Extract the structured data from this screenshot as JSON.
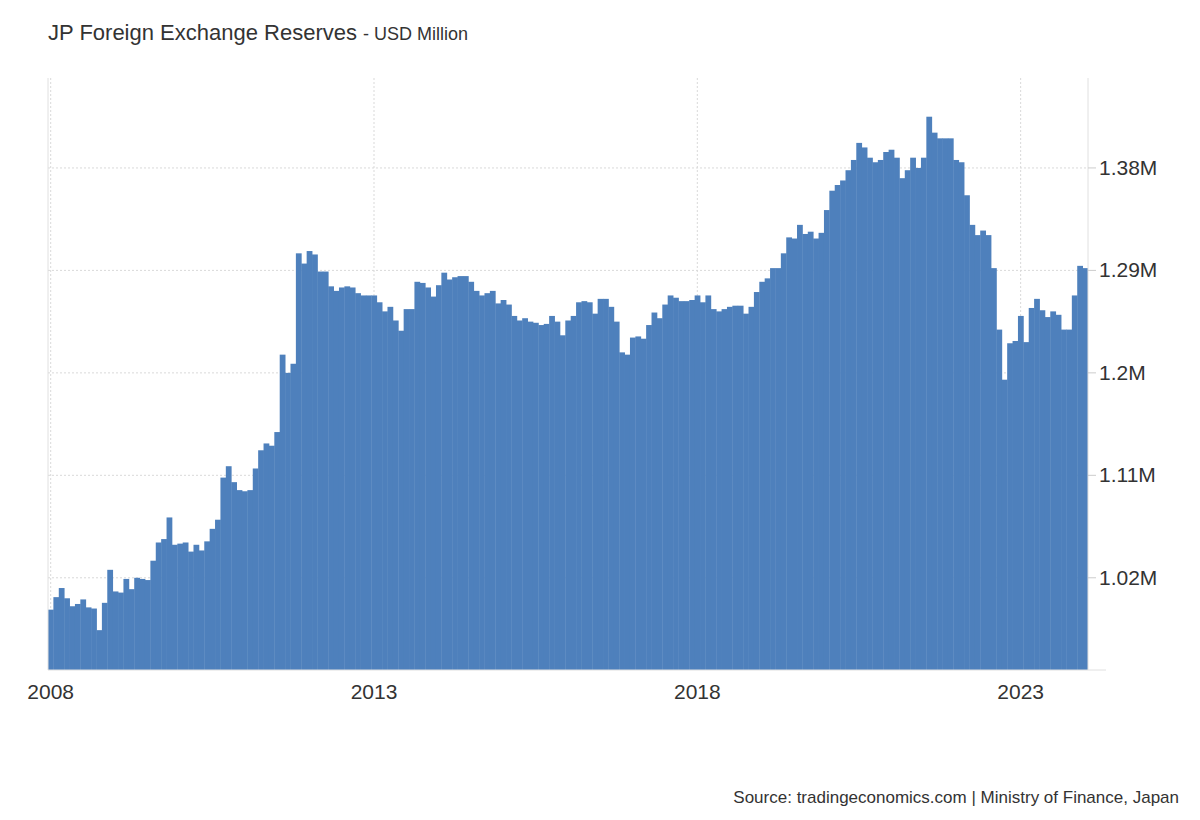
{
  "chart_data": {
    "type": "bar",
    "title": "JP Foreign Exchange Reserves",
    "subtitle": "- USD Million",
    "source": "Source: tradingeconomics.com | Ministry of Finance, Japan",
    "color": "#4e80bc",
    "grid": true,
    "ylim": [
      939000,
      1459000
    ],
    "yticks": [
      {
        "value": 1020000,
        "label": "1.02M"
      },
      {
        "value": 1110000,
        "label": "1.11M"
      },
      {
        "value": 1200000,
        "label": "1.2M"
      },
      {
        "value": 1290000,
        "label": "1.29M"
      },
      {
        "value": 1380000,
        "label": "1.38M"
      }
    ],
    "categories": [
      "2008",
      null,
      null,
      null,
      null,
      null,
      null,
      null,
      null,
      null,
      null,
      null,
      null,
      null,
      null,
      null,
      null,
      null,
      null,
      null,
      null,
      null,
      null,
      null,
      null,
      null,
      null,
      null,
      null,
      null,
      null,
      null,
      null,
      null,
      null,
      null,
      null,
      null,
      null,
      null,
      null,
      null,
      null,
      null,
      null,
      null,
      null,
      null,
      null,
      null,
      null,
      null,
      null,
      null,
      null,
      null,
      null,
      null,
      null,
      null,
      "2013",
      null,
      null,
      null,
      null,
      null,
      null,
      null,
      null,
      null,
      null,
      null,
      null,
      null,
      null,
      null,
      null,
      null,
      null,
      null,
      null,
      null,
      null,
      null,
      null,
      null,
      null,
      null,
      null,
      null,
      null,
      null,
      null,
      null,
      null,
      null,
      null,
      null,
      null,
      null,
      null,
      null,
      null,
      null,
      null,
      null,
      null,
      null,
      null,
      null,
      null,
      null,
      null,
      null,
      null,
      null,
      null,
      null,
      null,
      null,
      "2018",
      null,
      null,
      null,
      null,
      null,
      null,
      null,
      null,
      null,
      null,
      null,
      null,
      null,
      null,
      null,
      null,
      null,
      null,
      null,
      null,
      null,
      null,
      null,
      null,
      null,
      null,
      null,
      null,
      null,
      null,
      null,
      null,
      null,
      null,
      null,
      null,
      null,
      null,
      null,
      null,
      null,
      null,
      null,
      null,
      null,
      null,
      null,
      null,
      null,
      null,
      null,
      null,
      null,
      null,
      null,
      null,
      null,
      null,
      null,
      "2023",
      null,
      null,
      null,
      null,
      null,
      null,
      null,
      null,
      null,
      null,
      null,
      null
    ],
    "values": [
      992000,
      1003000,
      1011000,
      1002000,
      995000,
      997000,
      1001000,
      994000,
      993000,
      974000,
      998000,
      1027000,
      1008000,
      1007000,
      1019000,
      1010000,
      1020000,
      1019000,
      1018000,
      1035000,
      1051000,
      1054000,
      1073000,
      1049000,
      1050000,
      1051000,
      1043000,
      1049000,
      1044000,
      1052000,
      1063000,
      1071000,
      1108000,
      1118000,
      1104000,
      1097000,
      1096000,
      1097000,
      1116000,
      1132000,
      1138000,
      1136000,
      1148000,
      1216000,
      1200000,
      1208000,
      1305000,
      1296000,
      1307000,
      1304000,
      1289000,
      1289000,
      1276000,
      1272000,
      1275000,
      1276000,
      1275000,
      1270000,
      1268000,
      1268000,
      1268000,
      1262000,
      1254000,
      1258000,
      1246000,
      1237000,
      1256000,
      1256000,
      1280000,
      1279000,
      1275000,
      1267000,
      1277000,
      1288000,
      1282000,
      1284000,
      1285000,
      1285000,
      1280000,
      1272000,
      1268000,
      1270000,
      1272000,
      1261000,
      1264000,
      1260000,
      1250000,
      1246000,
      1248000,
      1245000,
      1244000,
      1242000,
      1243000,
      1250000,
      1245000,
      1233000,
      1246000,
      1250000,
      1262000,
      1263000,
      1262000,
      1252000,
      1265000,
      1265000,
      1258000,
      1245000,
      1218000,
      1216000,
      1231000,
      1232000,
      1230000,
      1242000,
      1253000,
      1248000,
      1260000,
      1268000,
      1266000,
      1263000,
      1263000,
      1264000,
      1268000,
      1262000,
      1268000,
      1256000,
      1254000,
      1256000,
      1258000,
      1259000,
      1259000,
      1252000,
      1258000,
      1271000,
      1280000,
      1283000,
      1292000,
      1292000,
      1305000,
      1319000,
      1318000,
      1330000,
      1322000,
      1324000,
      1318000,
      1323000,
      1343000,
      1360000,
      1365000,
      1369000,
      1378000,
      1387000,
      1402000,
      1398000,
      1389000,
      1385000,
      1387000,
      1394000,
      1396000,
      1389000,
      1371000,
      1378000,
      1389000,
      1380000,
      1389000,
      1425000,
      1411000,
      1406000,
      1406000,
      1406000,
      1387000,
      1385000,
      1356000,
      1330000,
      1321000,
      1325000,
      1321000,
      1292000,
      1238000,
      1194000,
      1226000,
      1228000,
      1250000,
      1227000,
      1257000,
      1265000,
      1255000,
      1249000,
      1254000,
      1251000,
      1238000,
      1238000,
      1268000,
      1294000,
      1292000
    ]
  }
}
